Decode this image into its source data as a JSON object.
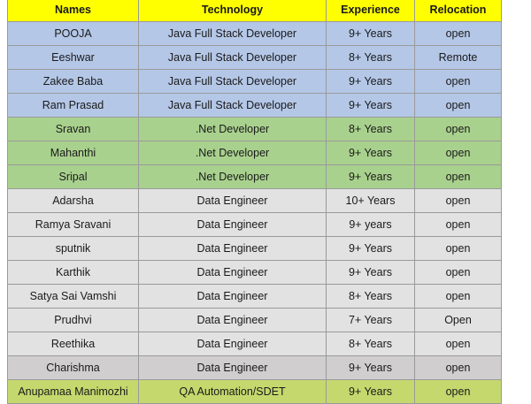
{
  "colors": {
    "header": "#ffff00",
    "java": "#b4c7e7",
    "net": "#a9d18e",
    "data": "#e2e2e2",
    "data_dark": "#d0cece",
    "qa": "#c5d86d"
  },
  "headers": {
    "names": "Names",
    "technology": "Technology",
    "experience": "Experience",
    "relocation": "Relocation"
  },
  "rows": [
    {
      "name": "POOJA",
      "technology": "Java Full Stack Developer",
      "experience": "9+ Years",
      "relocation": "open",
      "group": "java"
    },
    {
      "name": "Eeshwar",
      "technology": "Java Full Stack Developer",
      "experience": "8+ Years",
      "relocation": "Remote",
      "group": "java"
    },
    {
      "name": "Zakee Baba",
      "technology": "Java Full Stack Developer",
      "experience": "9+ Years",
      "relocation": "open",
      "group": "java"
    },
    {
      "name": "Ram Prasad",
      "technology": "Java Full Stack Developer",
      "experience": "9+ Years",
      "relocation": "open",
      "group": "java"
    },
    {
      "name": "Sravan",
      "technology": ".Net Developer",
      "experience": "8+ Years",
      "relocation": "open",
      "group": "net"
    },
    {
      "name": "Mahanthi",
      "technology": ".Net Developer",
      "experience": "9+ Years",
      "relocation": "open",
      "group": "net"
    },
    {
      "name": "Sripal",
      "technology": ".Net Developer",
      "experience": "9+ Years",
      "relocation": "open",
      "group": "net"
    },
    {
      "name": "Adarsha",
      "technology": "Data Engineer",
      "experience": "10+ Years",
      "relocation": "open",
      "group": "data"
    },
    {
      "name": "Ramya Sravani",
      "technology": "Data Engineer",
      "experience": "9+ years",
      "relocation": "open",
      "group": "data"
    },
    {
      "name": "sputnik",
      "technology": "Data Engineer",
      "experience": "9+ Years",
      "relocation": "open",
      "group": "data"
    },
    {
      "name": "Karthik",
      "technology": "Data Engineer",
      "experience": "9+ Years",
      "relocation": "open",
      "group": "data"
    },
    {
      "name": "Satya Sai Vamshi",
      "technology": "Data Engineer",
      "experience": "8+ Years",
      "relocation": "open",
      "group": "data"
    },
    {
      "name": "Prudhvi",
      "technology": "Data Engineer",
      "experience": "7+ Years",
      "relocation": "Open",
      "group": "data"
    },
    {
      "name": "Reethika",
      "technology": "Data Engineer",
      "experience": "8+ Years",
      "relocation": "open",
      "group": "data"
    },
    {
      "name": "Charishma",
      "technology": "Data Engineer",
      "experience": "9+ Years",
      "relocation": "open",
      "group": "data-dark"
    },
    {
      "name": "Anupamaa Manimozhi",
      "technology": "QA Automation/SDET",
      "experience": "9+ Years",
      "relocation": "open",
      "group": "qa"
    }
  ]
}
